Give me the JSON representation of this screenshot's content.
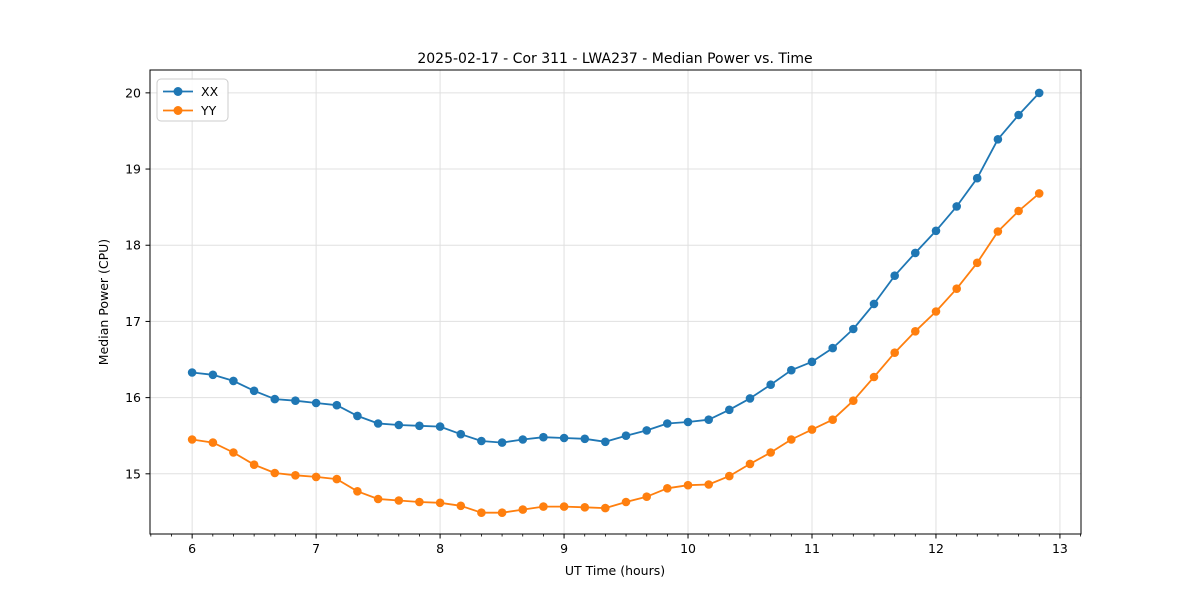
{
  "chart_data": {
    "type": "line",
    "title": "2025-02-17 - Cor 311 - LWA237 - Median Power vs. Time",
    "xlabel": "UT Time (hours)",
    "ylabel": "Median Power (CPU)",
    "xlim": [
      5.66,
      13.17
    ],
    "ylim": [
      14.21,
      20.3
    ],
    "x_ticks": [
      6,
      7,
      8,
      9,
      10,
      11,
      12,
      13
    ],
    "y_ticks": [
      15,
      16,
      17,
      18,
      19,
      20
    ],
    "x_minor_tick_step": 0.16667,
    "grid": true,
    "grid_color": "#e0e0e0",
    "legend_position": "upper-left",
    "x": [
      6.0,
      6.167,
      6.333,
      6.5,
      6.667,
      6.833,
      7.0,
      7.167,
      7.333,
      7.5,
      7.667,
      7.833,
      8.0,
      8.167,
      8.333,
      8.5,
      8.667,
      8.833,
      9.0,
      9.167,
      9.333,
      9.5,
      9.667,
      9.833,
      10.0,
      10.167,
      10.333,
      10.5,
      10.667,
      10.833,
      11.0,
      11.167,
      11.333,
      11.5,
      11.667,
      11.833,
      12.0,
      12.167,
      12.333,
      12.5,
      12.667,
      12.833
    ],
    "series": [
      {
        "name": "XX",
        "color": "#1f77b4",
        "values": [
          16.33,
          16.3,
          16.22,
          16.09,
          15.98,
          15.96,
          15.93,
          15.9,
          15.76,
          15.66,
          15.64,
          15.63,
          15.62,
          15.52,
          15.43,
          15.41,
          15.45,
          15.48,
          15.47,
          15.46,
          15.42,
          15.5,
          15.57,
          15.66,
          15.68,
          15.71,
          15.84,
          15.99,
          16.17,
          16.36,
          16.47,
          16.65,
          16.9,
          17.23,
          17.6,
          17.9,
          18.19,
          18.51,
          18.88,
          19.39,
          19.71,
          20.0
        ]
      },
      {
        "name": "YY",
        "color": "#ff7f0e",
        "values": [
          15.45,
          15.41,
          15.28,
          15.12,
          15.01,
          14.98,
          14.96,
          14.93,
          14.77,
          14.67,
          14.65,
          14.63,
          14.62,
          14.58,
          14.49,
          14.49,
          14.53,
          14.57,
          14.57,
          14.56,
          14.55,
          14.63,
          14.7,
          14.81,
          14.85,
          14.86,
          14.97,
          15.13,
          15.28,
          15.45,
          15.58,
          15.71,
          15.96,
          16.27,
          16.59,
          16.87,
          17.13,
          17.43,
          17.77,
          18.18,
          18.45,
          18.68
        ]
      }
    ]
  },
  "colors": {
    "background": "#ffffff",
    "spine": "#000000",
    "grid": "#e0e0e0",
    "series_xx": "#1f77b4",
    "series_yy": "#ff7f0e",
    "legend_border": "#cccccc"
  }
}
